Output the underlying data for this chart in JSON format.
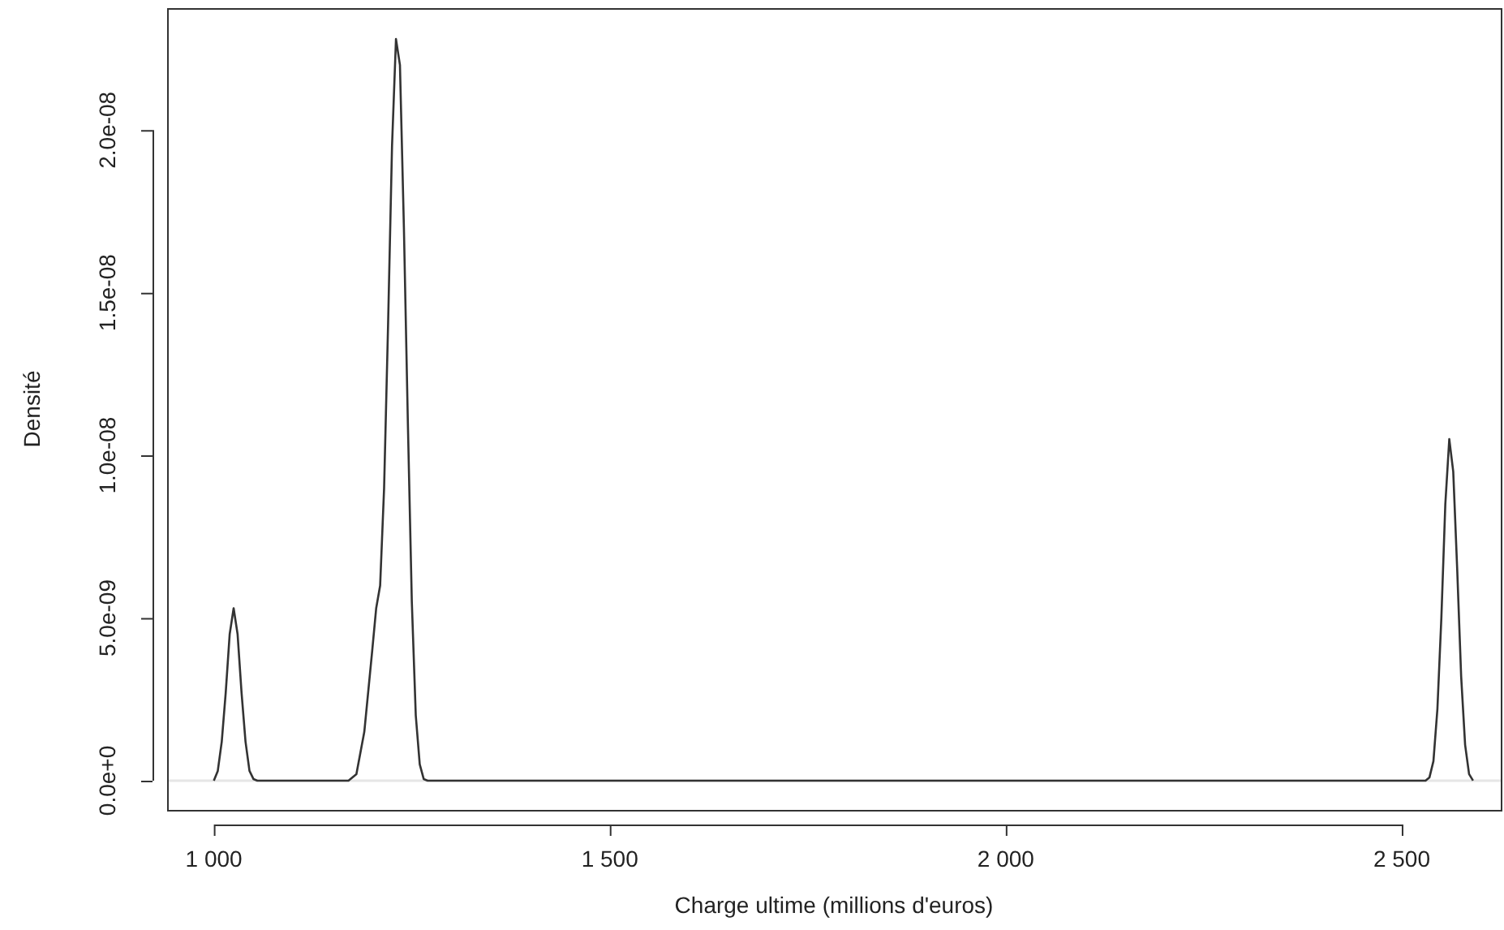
{
  "chart_data": {
    "type": "line",
    "xlabel": "Charge ultime (millions d'euros)",
    "ylabel": "Densité",
    "x": [
      1000,
      1005,
      1010,
      1015,
      1020,
      1025,
      1030,
      1035,
      1040,
      1045,
      1050,
      1055,
      1170,
      1180,
      1190,
      1200,
      1205,
      1210,
      1215,
      1220,
      1225,
      1230,
      1235,
      1240,
      1245,
      1250,
      1255,
      1260,
      1265,
      1270,
      2530,
      2535,
      2540,
      2545,
      2550,
      2555,
      2560,
      2565,
      2570,
      2575,
      2580,
      2585,
      2590
    ],
    "series": [
      {
        "color": "#333333",
        "values": [
          0,
          3e-10,
          1.2e-09,
          2.7e-09,
          4.5e-09,
          5.3e-09,
          4.5e-09,
          2.7e-09,
          1.2e-09,
          3e-10,
          5e-11,
          0,
          0,
          2e-10,
          1.5e-09,
          4e-09,
          5.3e-09,
          6e-09,
          9e-09,
          1.4e-08,
          1.95e-08,
          2.28e-08,
          2.2e-08,
          1.7e-08,
          1.1e-08,
          5.5e-09,
          2e-09,
          5e-10,
          5e-11,
          0,
          0,
          1e-10,
          6e-10,
          2.2e-09,
          5e-09,
          8.5e-09,
          1.05e-08,
          9.5e-09,
          6.5e-09,
          3.2e-09,
          1.1e-09,
          2e-10,
          0
        ]
      }
    ],
    "xlim": [
      941,
      2625
    ],
    "xticks": [
      {
        "value": 1000,
        "label": "1 000"
      },
      {
        "value": 1500,
        "label": "1 500"
      },
      {
        "value": 2000,
        "label": "2 000"
      },
      {
        "value": 2500,
        "label": "2 500"
      }
    ],
    "ylim": [
      -9e-10,
      2.375e-08
    ],
    "yticks": [
      {
        "value": 0,
        "label": "0.0e+0"
      },
      {
        "value": 5e-09,
        "label": "5.0e-09"
      },
      {
        "value": 1e-08,
        "label": "1.0e-08"
      },
      {
        "value": 1.5e-08,
        "label": "1.5e-08"
      },
      {
        "value": 2e-08,
        "label": "2.0e-08"
      }
    ],
    "ref_lines": [
      {
        "axis": "y",
        "value": 0,
        "color": "#e6e6e6"
      }
    ],
    "grid": false,
    "legend": false,
    "marker": "none",
    "line_style": "solid"
  }
}
